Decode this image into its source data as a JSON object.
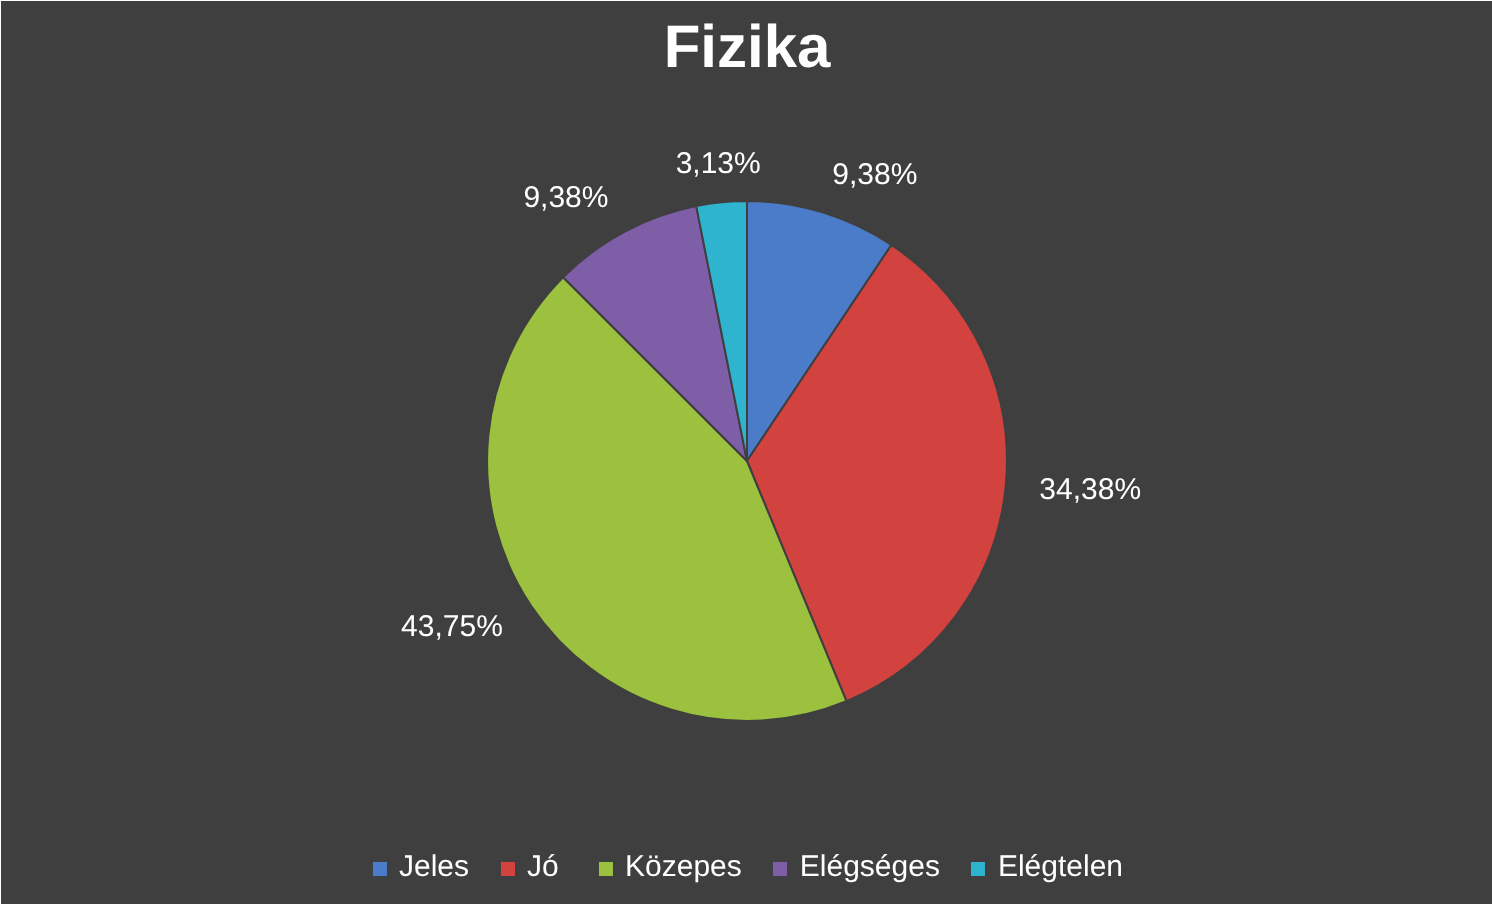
{
  "chart_data": {
    "type": "pie",
    "title": "Fizika",
    "categories": [
      "Jeles",
      "Jó",
      "Közepes",
      "Elégséges",
      "Elégtelen"
    ],
    "values": [
      9.38,
      34.38,
      43.75,
      9.38,
      3.13
    ],
    "colors": [
      "#4a7cc9",
      "#d2423e",
      "#9bc13f",
      "#7f5ea8",
      "#2fb4cf"
    ],
    "value_labels": [
      "9,38%",
      "34,38%",
      "43,75%",
      "9,38%",
      "3,13%"
    ],
    "legend": "bottom"
  }
}
